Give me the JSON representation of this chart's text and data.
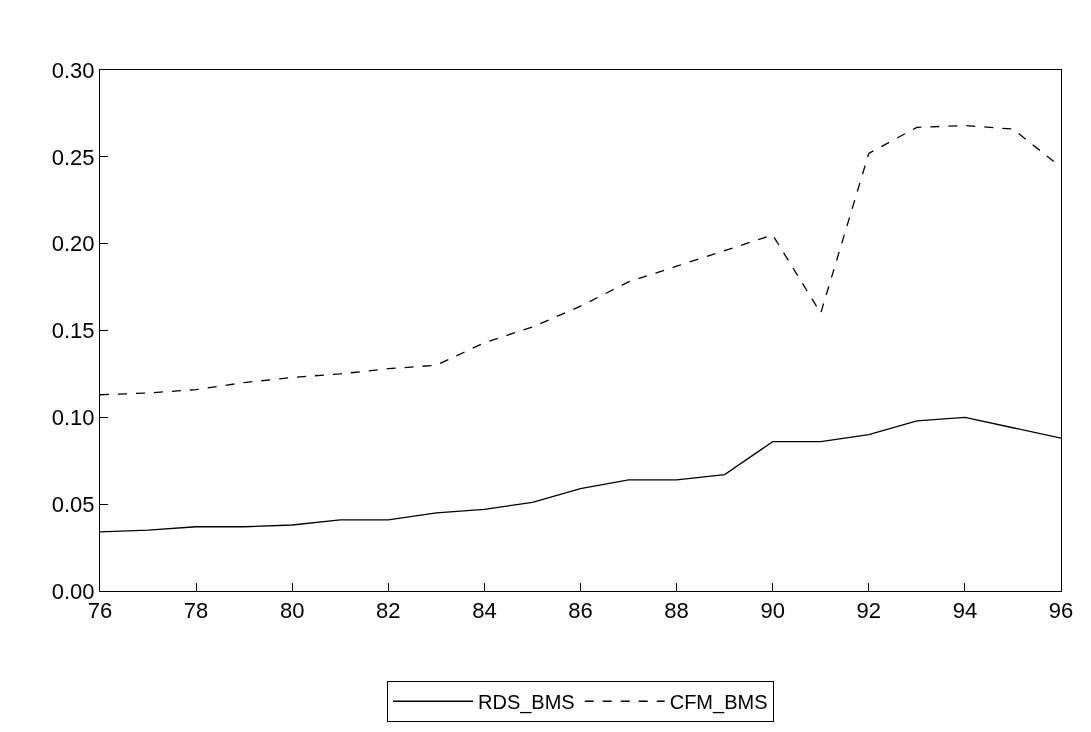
{
  "chart_data": {
    "type": "line",
    "x": [
      76,
      77,
      78,
      79,
      80,
      81,
      82,
      83,
      84,
      85,
      86,
      87,
      88,
      89,
      90,
      91,
      92,
      93,
      94,
      95,
      96
    ],
    "series": [
      {
        "name": "RDS_BMS",
        "color": "#000000",
        "line_style": "solid",
        "values": [
          0.034,
          0.035,
          0.037,
          0.037,
          0.038,
          0.041,
          0.041,
          0.045,
          0.047,
          0.051,
          0.059,
          0.064,
          0.064,
          0.067,
          0.086,
          0.086,
          0.09,
          0.098,
          0.1,
          0.094,
          0.088
        ]
      },
      {
        "name": "CFM_BMS",
        "color": "#000000",
        "line_style": "dashed",
        "values": [
          0.113,
          0.114,
          0.116,
          0.12,
          0.123,
          0.125,
          0.128,
          0.13,
          0.143,
          0.152,
          0.164,
          0.178,
          0.187,
          0.196,
          0.205,
          0.16,
          0.252,
          0.267,
          0.268,
          0.266,
          0.244
        ]
      }
    ],
    "xlim": [
      76,
      96
    ],
    "xticks": [
      76,
      78,
      80,
      82,
      84,
      86,
      88,
      90,
      92,
      94,
      96
    ],
    "ylim": [
      0,
      0.3
    ],
    "yticks": [
      {
        "value": 0,
        "label": "0.00"
      },
      {
        "value": 0.05,
        "label": "0.05"
      },
      {
        "value": 0.1,
        "label": "0.10"
      },
      {
        "value": 0.15,
        "label": "0.15"
      },
      {
        "value": 0.2,
        "label": "0.20"
      },
      {
        "value": 0.25,
        "label": "0.25"
      },
      {
        "value": 0.3,
        "label": "0.30"
      }
    ],
    "legend": "bottom",
    "marker": "none"
  }
}
